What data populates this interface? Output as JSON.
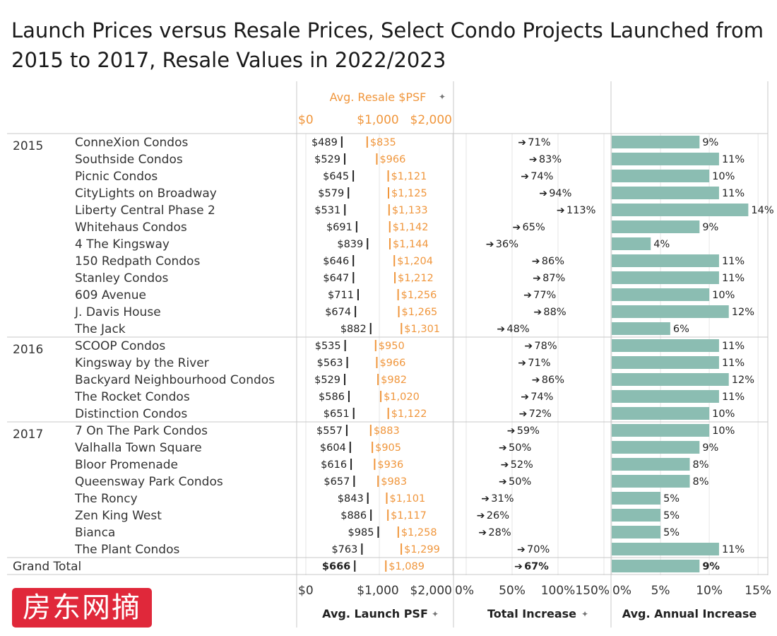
{
  "title": "Launch Prices versus Resale Prices, Select Condo Projects Launched from 2015 to 2017, Resale Values in 2022/2023",
  "logo_text": "房东网摘",
  "colors": {
    "resale": "#f0963c",
    "launch": "#222222",
    "bar": "#8bbdb2",
    "grid": "#e6e6e6",
    "divider": "#c8c8c8"
  },
  "chart_data": {
    "type": "table",
    "columns": {
      "resale_header": "Avg. Resale $PSF",
      "launch_header": "Avg. Launch PSF",
      "total_header": "Total Increase",
      "annual_header": "Avg. Annual Increase"
    },
    "price_axis": {
      "ticks": [
        0,
        1000,
        2000
      ],
      "tick_labels": [
        "$0",
        "$1,000",
        "$2,000"
      ],
      "range": [
        0,
        2000
      ]
    },
    "total_axis": {
      "ticks": [
        0,
        50,
        100,
        150
      ],
      "tick_labels": [
        "0%",
        "50%",
        "100%",
        "150%"
      ],
      "range": [
        0,
        150
      ]
    },
    "annual_axis": {
      "ticks": [
        0,
        5,
        10,
        15
      ],
      "tick_labels": [
        "0%",
        "5%",
        "10%",
        "15%"
      ],
      "range": [
        0,
        16
      ]
    },
    "groups": [
      {
        "year": "2015",
        "rows": [
          {
            "name": "ConneXion Condos",
            "launch": 489,
            "resale": 835,
            "launch_label": "$489",
            "resale_label": "$835",
            "total": 71,
            "total_label": "71%",
            "annual": 9,
            "annual_label": "9%"
          },
          {
            "name": "Southside Condos",
            "launch": 529,
            "resale": 966,
            "launch_label": "$529",
            "resale_label": "$966",
            "total": 83,
            "total_label": "83%",
            "annual": 11,
            "annual_label": "11%"
          },
          {
            "name": "Picnic Condos",
            "launch": 645,
            "resale": 1121,
            "launch_label": "$645",
            "resale_label": "$1,121",
            "total": 74,
            "total_label": "74%",
            "annual": 10,
            "annual_label": "10%"
          },
          {
            "name": "CityLights on Broadway",
            "launch": 579,
            "resale": 1125,
            "launch_label": "$579",
            "resale_label": "$1,125",
            "total": 94,
            "total_label": "94%",
            "annual": 11,
            "annual_label": "11%"
          },
          {
            "name": "Liberty Central Phase 2",
            "launch": 531,
            "resale": 1133,
            "launch_label": "$531",
            "resale_label": "$1,133",
            "total": 113,
            "total_label": "113%",
            "annual": 14,
            "annual_label": "14%"
          },
          {
            "name": "Whitehaus Condos",
            "launch": 691,
            "resale": 1142,
            "launch_label": "$691",
            "resale_label": "$1,142",
            "total": 65,
            "total_label": "65%",
            "annual": 9,
            "annual_label": "9%"
          },
          {
            "name": "4 The Kingsway",
            "launch": 839,
            "resale": 1144,
            "launch_label": "$839",
            "resale_label": "$1,144",
            "total": 36,
            "total_label": "36%",
            "annual": 4,
            "annual_label": "4%"
          },
          {
            "name": "150 Redpath Condos",
            "launch": 646,
            "resale": 1204,
            "launch_label": "$646",
            "resale_label": "$1,204",
            "total": 86,
            "total_label": "86%",
            "annual": 11,
            "annual_label": "11%"
          },
          {
            "name": "Stanley Condos",
            "launch": 647,
            "resale": 1212,
            "launch_label": "$647",
            "resale_label": "$1,212",
            "total": 87,
            "total_label": "87%",
            "annual": 11,
            "annual_label": "11%"
          },
          {
            "name": "609 Avenue",
            "launch": 711,
            "resale": 1256,
            "launch_label": "$711",
            "resale_label": "$1,256",
            "total": 77,
            "total_label": "77%",
            "annual": 10,
            "annual_label": "10%"
          },
          {
            "name": "J. Davis House",
            "launch": 674,
            "resale": 1265,
            "launch_label": "$674",
            "resale_label": "$1,265",
            "total": 88,
            "total_label": "88%",
            "annual": 12,
            "annual_label": "12%"
          },
          {
            "name": "The Jack",
            "launch": 882,
            "resale": 1301,
            "launch_label": "$882",
            "resale_label": "$1,301",
            "total": 48,
            "total_label": "48%",
            "annual": 6,
            "annual_label": "6%"
          }
        ]
      },
      {
        "year": "2016",
        "rows": [
          {
            "name": "SCOOP Condos",
            "launch": 535,
            "resale": 950,
            "launch_label": "$535",
            "resale_label": "$950",
            "total": 78,
            "total_label": "78%",
            "annual": 11,
            "annual_label": "11%"
          },
          {
            "name": "Kingsway by the River",
            "launch": 563,
            "resale": 966,
            "launch_label": "$563",
            "resale_label": "$966",
            "total": 71,
            "total_label": "71%",
            "annual": 11,
            "annual_label": "11%"
          },
          {
            "name": "Backyard Neighbourhood Condos",
            "launch": 529,
            "resale": 982,
            "launch_label": "$529",
            "resale_label": "$982",
            "total": 86,
            "total_label": "86%",
            "annual": 12,
            "annual_label": "12%"
          },
          {
            "name": "The Rocket Condos",
            "launch": 586,
            "resale": 1020,
            "launch_label": "$586",
            "resale_label": "$1,020",
            "total": 74,
            "total_label": "74%",
            "annual": 11,
            "annual_label": "11%"
          },
          {
            "name": "Distinction Condos",
            "launch": 651,
            "resale": 1122,
            "launch_label": "$651",
            "resale_label": "$1,122",
            "total": 72,
            "total_label": "72%",
            "annual": 10,
            "annual_label": "10%"
          }
        ]
      },
      {
        "year": "2017",
        "rows": [
          {
            "name": "7 On The Park Condos",
            "launch": 557,
            "resale": 883,
            "launch_label": "$557",
            "resale_label": "$883",
            "total": 59,
            "total_label": "59%",
            "annual": 10,
            "annual_label": "10%"
          },
          {
            "name": "Valhalla Town Square",
            "launch": 604,
            "resale": 905,
            "launch_label": "$604",
            "resale_label": "$905",
            "total": 50,
            "total_label": "50%",
            "annual": 9,
            "annual_label": "9%"
          },
          {
            "name": "Bloor Promenade",
            "launch": 616,
            "resale": 936,
            "launch_label": "$616",
            "resale_label": "$936",
            "total": 52,
            "total_label": "52%",
            "annual": 8,
            "annual_label": "8%"
          },
          {
            "name": "Queensway Park Condos",
            "launch": 657,
            "resale": 983,
            "launch_label": "$657",
            "resale_label": "$983",
            "total": 50,
            "total_label": "50%",
            "annual": 8,
            "annual_label": "8%"
          },
          {
            "name": "The Roncy",
            "launch": 843,
            "resale": 1101,
            "launch_label": "$843",
            "resale_label": "$1,101",
            "total": 31,
            "total_label": "31%",
            "annual": 5,
            "annual_label": "5%"
          },
          {
            "name": "Zen King West",
            "launch": 886,
            "resale": 1117,
            "launch_label": "$886",
            "resale_label": "$1,117",
            "total": 26,
            "total_label": "26%",
            "annual": 5,
            "annual_label": "5%"
          },
          {
            "name": "Bianca",
            "launch": 985,
            "resale": 1258,
            "launch_label": "$985",
            "resale_label": "$1,258",
            "total": 28,
            "total_label": "28%",
            "annual": 5,
            "annual_label": "5%"
          },
          {
            "name": "The Plant Condos",
            "launch": 763,
            "resale": 1299,
            "launch_label": "$763",
            "resale_label": "$1,299",
            "total": 70,
            "total_label": "70%",
            "annual": 11,
            "annual_label": "11%"
          }
        ]
      }
    ],
    "grand_total": {
      "name": "Grand Total",
      "launch": 666,
      "resale": 1089,
      "launch_label": "$666",
      "resale_label": "$1,089",
      "total": 67,
      "total_label": "67%",
      "annual": 9,
      "annual_label": "9%"
    }
  }
}
